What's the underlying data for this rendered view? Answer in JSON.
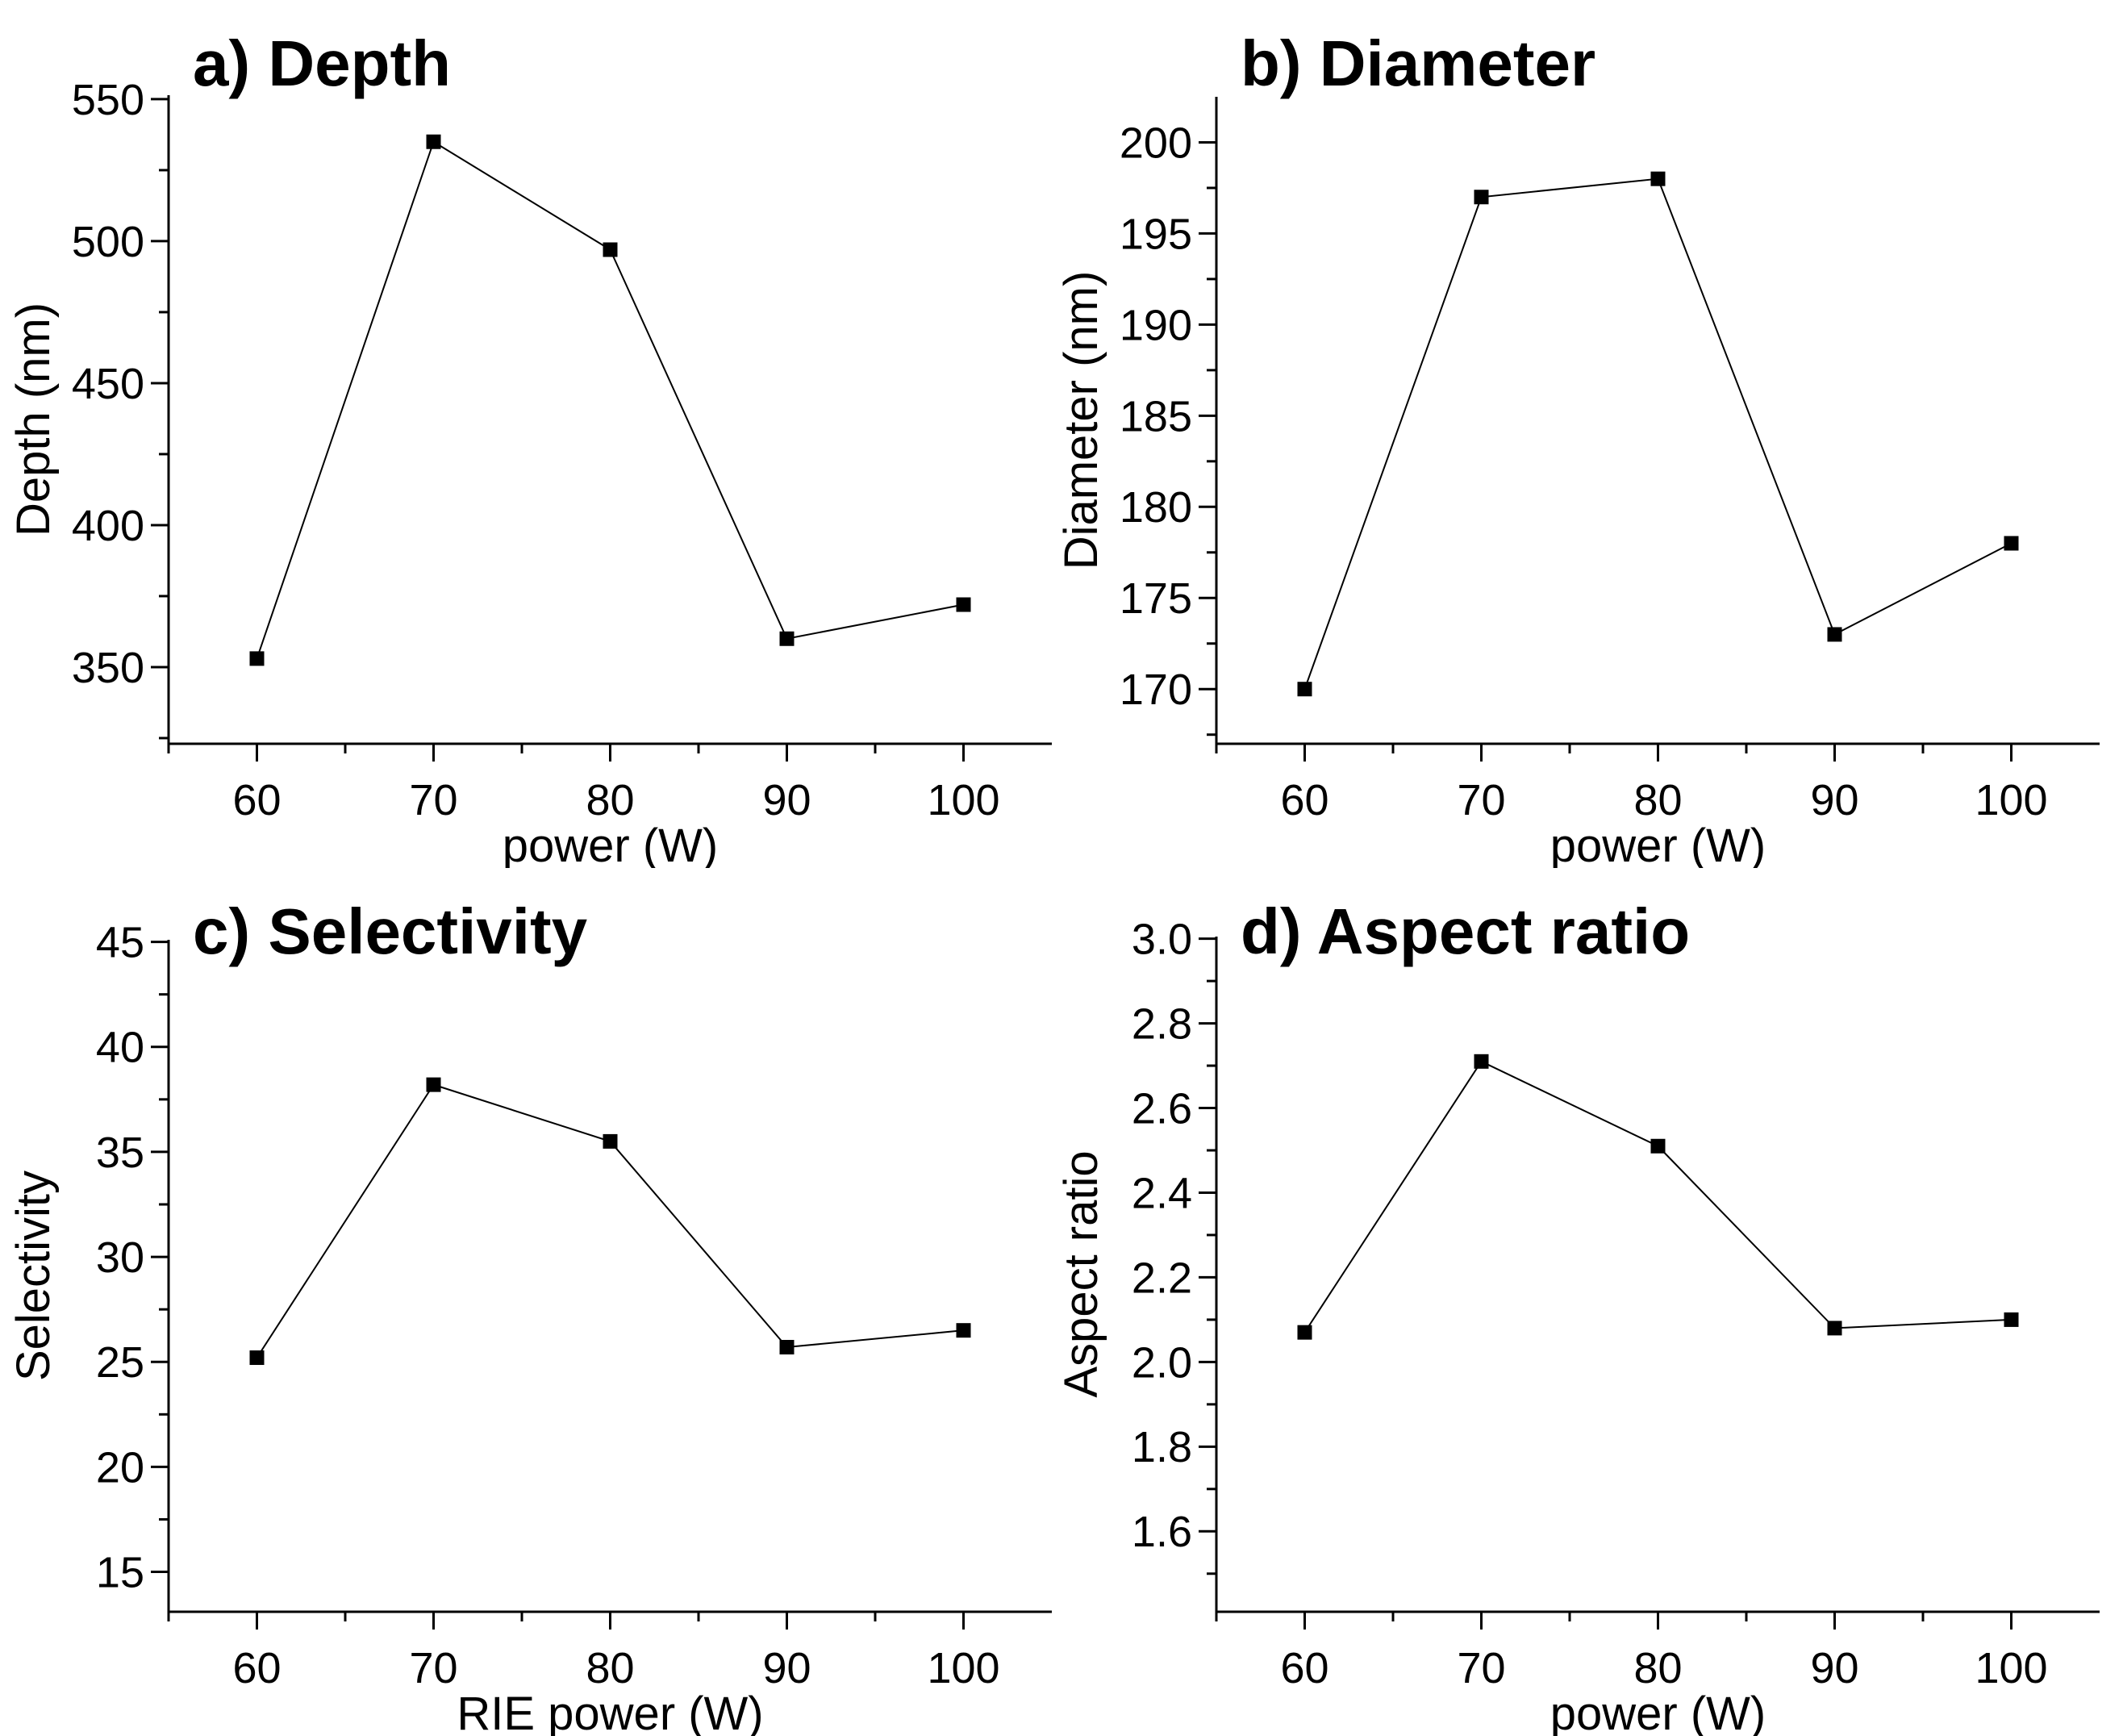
{
  "page": {
    "background_color": "#ffffff",
    "foreground_color": "#000000",
    "description": "Four-panel line-chart figure of RIE power series measurements"
  },
  "chart_data": [
    {
      "panel": "a",
      "type": "line",
      "title": "a) Depth",
      "xlabel": "power (W)",
      "ylabel": "Depth (nm)",
      "x": [
        60,
        70,
        80,
        90,
        100
      ],
      "y": [
        353,
        535,
        497,
        360,
        372
      ],
      "xlim": [
        55,
        105
      ],
      "ylim": [
        323,
        551.4
      ],
      "xticks": [
        60,
        70,
        80,
        90,
        100
      ],
      "yticks": [
        350,
        400,
        450,
        500,
        550
      ],
      "xminor_step": 5,
      "yminor_step": 25,
      "ytick_decimals": 0,
      "xtick_decimals": 0,
      "marker": "filled-square",
      "line_color": "#000000",
      "marker_color": "#000000",
      "grid": false,
      "legend": "none"
    },
    {
      "panel": "b",
      "type": "line",
      "title": "b) Diameter",
      "xlabel": "power (W)",
      "ylabel": "Diameter (nm)",
      "x": [
        60,
        70,
        80,
        90,
        100
      ],
      "y": [
        170,
        197,
        198,
        173,
        178
      ],
      "xlim": [
        55,
        105
      ],
      "ylim": [
        167,
        202.5
      ],
      "xticks": [
        60,
        70,
        80,
        90,
        100
      ],
      "yticks": [
        170,
        175,
        180,
        185,
        190,
        195,
        200
      ],
      "xminor_step": 5,
      "yminor_step": 2.5,
      "ytick_decimals": 0,
      "xtick_decimals": 0,
      "marker": "filled-square",
      "line_color": "#000000",
      "marker_color": "#000000",
      "grid": false,
      "legend": "none"
    },
    {
      "panel": "c",
      "type": "line",
      "title": "c) Selectivity",
      "xlabel": "RIE power (W)",
      "ylabel": "Selectivity",
      "x": [
        60,
        70,
        80,
        90,
        100
      ],
      "y": [
        25.2,
        38.2,
        35.5,
        25.7,
        26.5
      ],
      "xlim": [
        55,
        105
      ],
      "ylim": [
        13.1,
        45.1
      ],
      "xticks": [
        60,
        70,
        80,
        90,
        100
      ],
      "yticks": [
        15,
        20,
        25,
        30,
        35,
        40,
        45
      ],
      "xminor_step": 5,
      "yminor_step": 2.5,
      "ytick_decimals": 0,
      "xtick_decimals": 0,
      "marker": "filled-square",
      "line_color": "#000000",
      "marker_color": "#000000",
      "grid": false,
      "legend": "none"
    },
    {
      "panel": "d",
      "type": "line",
      "title": "d) Aspect ratio",
      "xlabel": "power (W)",
      "ylabel": "Aspect ratio",
      "x": [
        60,
        70,
        80,
        90,
        100
      ],
      "y": [
        2.07,
        2.71,
        2.51,
        2.08,
        2.1
      ],
      "xlim": [
        55,
        105
      ],
      "ylim": [
        1.41,
        3.005
      ],
      "xticks": [
        60,
        70,
        80,
        90,
        100
      ],
      "yticks": [
        1.6,
        1.8,
        2.0,
        2.2,
        2.4,
        2.6,
        2.8,
        3.0
      ],
      "xminor_step": 5,
      "yminor_step": 0.1,
      "ytick_decimals": 1,
      "xtick_decimals": 0,
      "marker": "filled-square",
      "line_color": "#000000",
      "marker_color": "#000000",
      "grid": false,
      "legend": "none"
    }
  ]
}
